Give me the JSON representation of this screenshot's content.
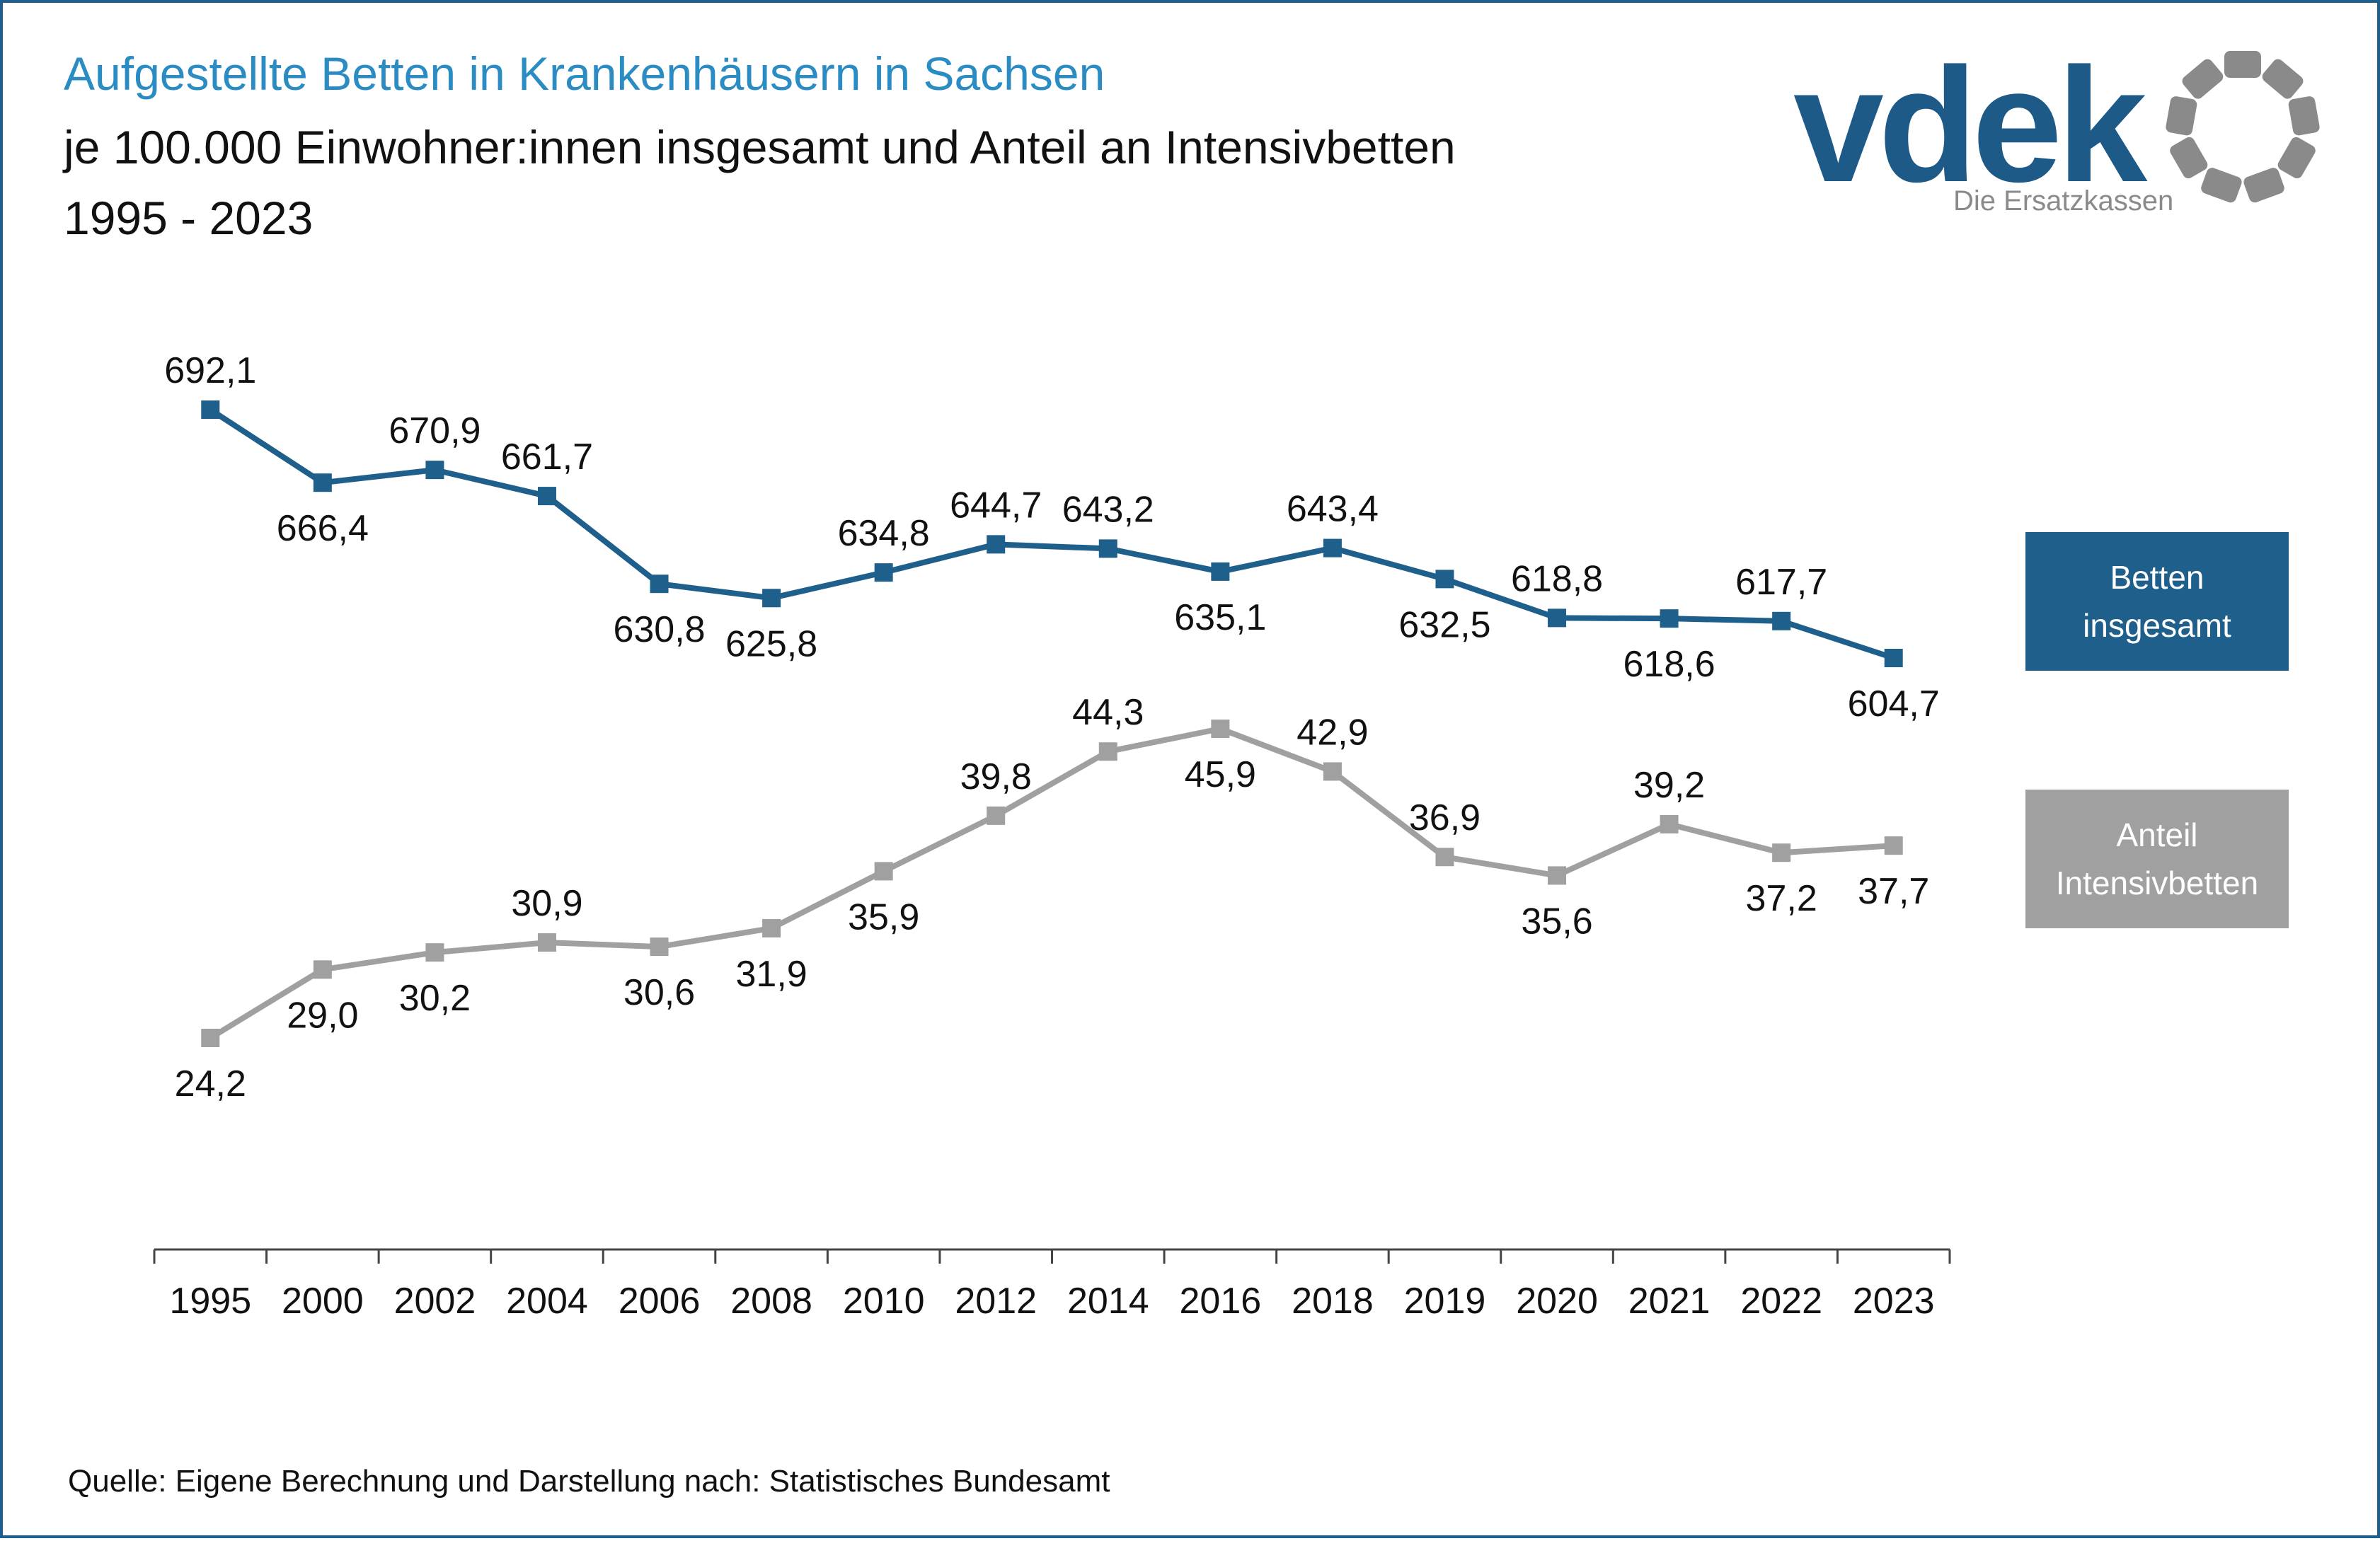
{
  "title": "Aufgestellte Betten in Krankenhäusern in Sachsen",
  "subtitle": "je 100.000 Einwohner:innen insgesamt und Anteil an Intensivbetten",
  "years_label": "1995 - 2023",
  "source": "Quelle: Eigene Berechnung und Darstellung nach: Statistisches Bundesamt",
  "logo": {
    "word": "vdek",
    "tagline": "Die Ersatzkassen",
    "colors": {
      "word": "#1e5a88",
      "ring": "#8a8a8a"
    }
  },
  "legend": {
    "betten": "Betten\ninsgesamt",
    "anteil": "Anteil\nIntensivbetten"
  },
  "colors": {
    "title": "#2b8cc4",
    "betten": "#1f5f8b",
    "anteil": "#a0a0a0"
  },
  "chart_data": {
    "type": "line",
    "categories": [
      "1995",
      "2000",
      "2002",
      "2004",
      "2006",
      "2008",
      "2010",
      "2012",
      "2014",
      "2016",
      "2018",
      "2019",
      "2020",
      "2021",
      "2022",
      "2023"
    ],
    "series": [
      {
        "name": "Betten insgesamt",
        "values": [
          692.1,
          666.4,
          670.9,
          661.7,
          630.8,
          625.8,
          634.8,
          644.7,
          643.2,
          635.1,
          643.4,
          632.5,
          618.8,
          618.6,
          617.7,
          604.7
        ],
        "labels": [
          "692,1",
          "666,4",
          "670,9",
          "661,7",
          "630,8",
          "625,8",
          "634,8",
          "644,7",
          "643,2",
          "635,1",
          "643,4",
          "632,5",
          "618,8",
          "618,6",
          "617,7",
          "604,7"
        ],
        "label_pos": [
          "above",
          "below",
          "above",
          "above",
          "below",
          "below",
          "above",
          "above",
          "above",
          "below",
          "above",
          "below",
          "above",
          "below",
          "above",
          "below"
        ]
      },
      {
        "name": "Anteil Intensivbetten",
        "values": [
          24.2,
          29.0,
          30.2,
          30.9,
          30.6,
          31.9,
          35.9,
          39.8,
          44.3,
          45.9,
          42.9,
          36.9,
          35.6,
          39.2,
          37.2,
          37.7
        ],
        "labels": [
          "24,2",
          "29,0",
          "30,2",
          "30,9",
          "30,6",
          "31,9",
          "35,9",
          "39,8",
          "44,3",
          "45,9",
          "42,9",
          "36,9",
          "35,6",
          "39,2",
          "37,2",
          "37,7"
        ],
        "label_pos": [
          "below",
          "below",
          "below",
          "above",
          "below",
          "below",
          "below",
          "above",
          "above",
          "below",
          "above",
          "above",
          "below",
          "above",
          "below",
          "below"
        ]
      }
    ],
    "grid": false,
    "y_axis_visible": false,
    "legend_placement": "right"
  }
}
